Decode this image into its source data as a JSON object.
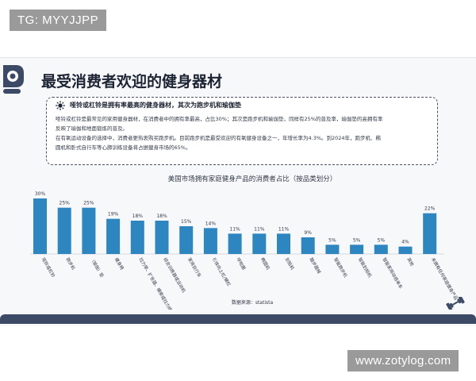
{
  "watermarks": {
    "top_left": "TG: MYYJJPP",
    "bottom_right": "www.zotylog.com"
  },
  "header": {
    "title": "最受消费者欢迎的健身器材"
  },
  "note": {
    "heading": "哑铃或杠铃是拥有率最高的健身器材，其次为跑步机和瑜伽垫",
    "lines": [
      "哑铃或杠铃是最常见的家用健身器材，在消费者中的拥有率最高，占比30%；其次是跑步机和瑜伽垫，同样有25%的普及率，瑜伽垫的高拥有率",
      "反映了瑜伽和地面锻炼的普及。",
      "在有氧运动设备的选择中，消费者更热衷购买跑步机。目前跑步机是最受欢迎的有氧健身设备之一，年增长率为4.3%。到2024年，跑步机、椭",
      "圆机和卧式自行车等心肺训练设备将占据健身市场的65%。"
    ]
  },
  "colors": {
    "bar": "#2e86c1",
    "title": "#1d2433",
    "bottom_bar": "#3c4a66"
  },
  "chart_data": {
    "type": "bar",
    "title": "美国市场拥有家庭健身产品的消费者占比（按品类划分）",
    "source": "数据来源：statista",
    "categories": [
      "哑铃或杠铃",
      "跑步机",
      "（瑜伽）垫",
      "健身椅",
      "拉力带、扩张器、横索或拉力绳",
      "综合训练器或运动机",
      "家用自行车",
      "引体向上杠/横杠",
      "呼啦圈",
      "椭圆机",
      "划船机",
      "踏步器械",
      "智能跑步机",
      "智能划船机",
      "智能家用动感单车",
      "其他",
      "未拥有任何家庭健身产品"
    ],
    "values": [
      30,
      25,
      25,
      19,
      18,
      18,
      15,
      14,
      11,
      11,
      11,
      9,
      5,
      5,
      5,
      4,
      22
    ],
    "value_labels": [
      "30%",
      "25%",
      "25%",
      "19%",
      "18%",
      "18%",
      "15%",
      "14%",
      "11%",
      "11%",
      "11%",
      "9%",
      "5%",
      "5%",
      "5%",
      "4%",
      "22%"
    ],
    "ylim": [
      0,
      30
    ]
  }
}
